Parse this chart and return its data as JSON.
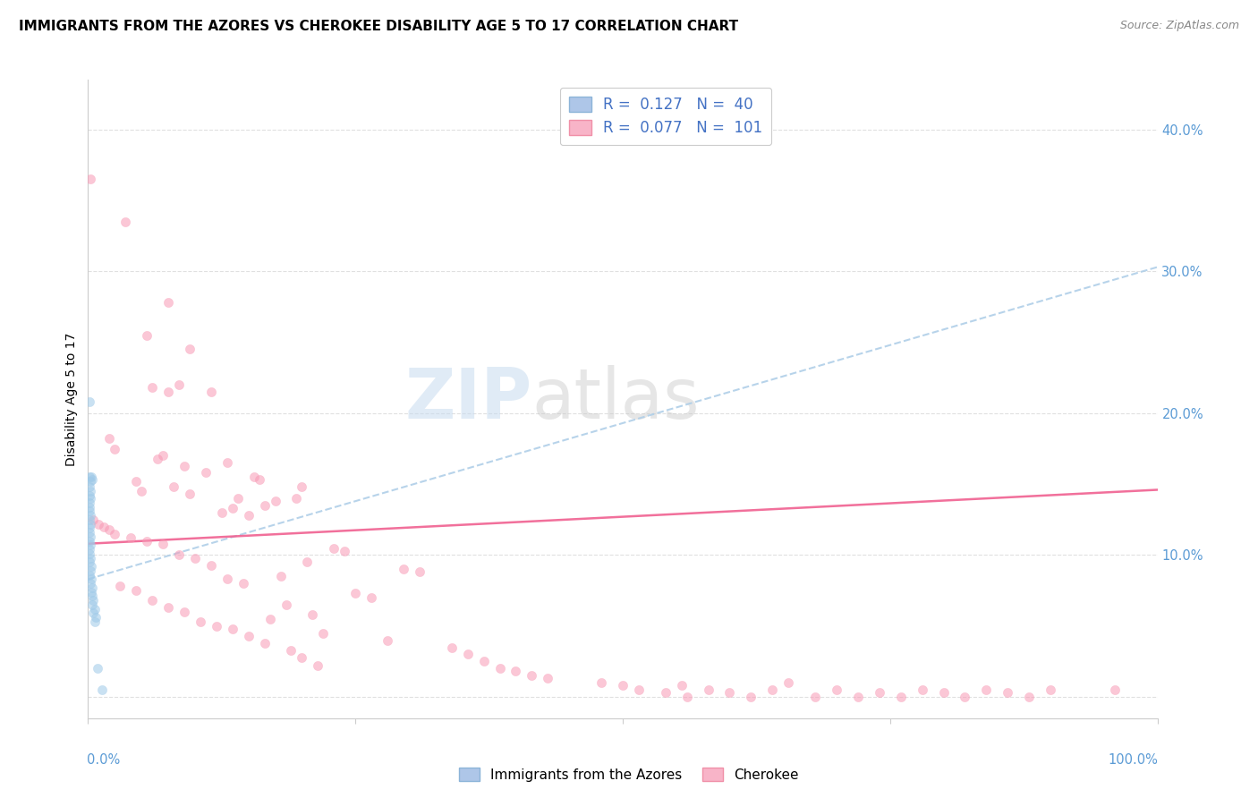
{
  "title": "IMMIGRANTS FROM THE AZORES VS CHEROKEE DISABILITY AGE 5 TO 17 CORRELATION CHART",
  "source": "Source: ZipAtlas.com",
  "ylabel": "Disability Age 5 to 17",
  "yticks": [
    0.0,
    0.1,
    0.2,
    0.3,
    0.4
  ],
  "ytick_labels": [
    "",
    "10.0%",
    "20.0%",
    "30.0%",
    "40.0%"
  ],
  "xlim": [
    0.0,
    1.0
  ],
  "ylim": [
    -0.015,
    0.435
  ],
  "watermark": "ZIPatlas",
  "background_color": "#ffffff",
  "grid_color": "#e0e0e0",
  "tick_color": "#5b9bd5",
  "scatter_size": 55,
  "scatter_alpha": 0.55,
  "blue_scatter_color": "#9ec9e8",
  "pink_scatter_color": "#f899b5",
  "blue_line_color": "#b0cfe8",
  "pink_line_color": "#f06090",
  "blue_line_intercept": 0.083,
  "blue_line_slope": 0.22,
  "pink_line_intercept": 0.108,
  "pink_line_slope": 0.038,
  "blue_scatter": [
    [
      0.001,
      0.208
    ],
    [
      0.003,
      0.155
    ],
    [
      0.004,
      0.153
    ],
    [
      0.001,
      0.155
    ],
    [
      0.002,
      0.152
    ],
    [
      0.001,
      0.148
    ],
    [
      0.002,
      0.145
    ],
    [
      0.001,
      0.142
    ],
    [
      0.002,
      0.14
    ],
    [
      0.001,
      0.137
    ],
    [
      0.001,
      0.134
    ],
    [
      0.001,
      0.131
    ],
    [
      0.002,
      0.128
    ],
    [
      0.001,
      0.125
    ],
    [
      0.002,
      0.122
    ],
    [
      0.001,
      0.119
    ],
    [
      0.001,
      0.116
    ],
    [
      0.002,
      0.113
    ],
    [
      0.001,
      0.11
    ],
    [
      0.002,
      0.107
    ],
    [
      0.001,
      0.104
    ],
    [
      0.001,
      0.101
    ],
    [
      0.002,
      0.098
    ],
    [
      0.001,
      0.095
    ],
    [
      0.003,
      0.092
    ],
    [
      0.002,
      0.089
    ],
    [
      0.001,
      0.086
    ],
    [
      0.003,
      0.083
    ],
    [
      0.002,
      0.08
    ],
    [
      0.004,
      0.077
    ],
    [
      0.003,
      0.074
    ],
    [
      0.004,
      0.071
    ],
    [
      0.005,
      0.068
    ],
    [
      0.004,
      0.065
    ],
    [
      0.006,
      0.062
    ],
    [
      0.005,
      0.059
    ],
    [
      0.007,
      0.056
    ],
    [
      0.006,
      0.053
    ],
    [
      0.009,
      0.02
    ],
    [
      0.013,
      0.005
    ]
  ],
  "pink_scatter": [
    [
      0.002,
      0.365
    ],
    [
      0.035,
      0.335
    ],
    [
      0.075,
      0.278
    ],
    [
      0.055,
      0.255
    ],
    [
      0.095,
      0.245
    ],
    [
      0.085,
      0.22
    ],
    [
      0.06,
      0.218
    ],
    [
      0.075,
      0.215
    ],
    [
      0.115,
      0.215
    ],
    [
      0.02,
      0.182
    ],
    [
      0.025,
      0.175
    ],
    [
      0.07,
      0.17
    ],
    [
      0.065,
      0.168
    ],
    [
      0.13,
      0.165
    ],
    [
      0.09,
      0.163
    ],
    [
      0.11,
      0.158
    ],
    [
      0.155,
      0.155
    ],
    [
      0.16,
      0.153
    ],
    [
      0.045,
      0.152
    ],
    [
      0.08,
      0.148
    ],
    [
      0.2,
      0.148
    ],
    [
      0.05,
      0.145
    ],
    [
      0.095,
      0.143
    ],
    [
      0.195,
      0.14
    ],
    [
      0.14,
      0.14
    ],
    [
      0.175,
      0.138
    ],
    [
      0.165,
      0.135
    ],
    [
      0.135,
      0.133
    ],
    [
      0.125,
      0.13
    ],
    [
      0.15,
      0.128
    ],
    [
      0.005,
      0.125
    ],
    [
      0.01,
      0.122
    ],
    [
      0.015,
      0.12
    ],
    [
      0.02,
      0.118
    ],
    [
      0.025,
      0.115
    ],
    [
      0.04,
      0.112
    ],
    [
      0.055,
      0.11
    ],
    [
      0.07,
      0.108
    ],
    [
      0.23,
      0.105
    ],
    [
      0.24,
      0.103
    ],
    [
      0.085,
      0.1
    ],
    [
      0.1,
      0.098
    ],
    [
      0.205,
      0.095
    ],
    [
      0.115,
      0.093
    ],
    [
      0.295,
      0.09
    ],
    [
      0.31,
      0.088
    ],
    [
      0.18,
      0.085
    ],
    [
      0.13,
      0.083
    ],
    [
      0.145,
      0.08
    ],
    [
      0.03,
      0.078
    ],
    [
      0.045,
      0.075
    ],
    [
      0.25,
      0.073
    ],
    [
      0.265,
      0.07
    ],
    [
      0.06,
      0.068
    ],
    [
      0.185,
      0.065
    ],
    [
      0.075,
      0.063
    ],
    [
      0.09,
      0.06
    ],
    [
      0.21,
      0.058
    ],
    [
      0.17,
      0.055
    ],
    [
      0.105,
      0.053
    ],
    [
      0.12,
      0.05
    ],
    [
      0.135,
      0.048
    ],
    [
      0.22,
      0.045
    ],
    [
      0.15,
      0.043
    ],
    [
      0.28,
      0.04
    ],
    [
      0.165,
      0.038
    ],
    [
      0.34,
      0.035
    ],
    [
      0.19,
      0.033
    ],
    [
      0.355,
      0.03
    ],
    [
      0.2,
      0.028
    ],
    [
      0.37,
      0.025
    ],
    [
      0.215,
      0.022
    ],
    [
      0.385,
      0.02
    ],
    [
      0.4,
      0.018
    ],
    [
      0.415,
      0.015
    ],
    [
      0.43,
      0.013
    ],
    [
      0.48,
      0.01
    ],
    [
      0.5,
      0.008
    ],
    [
      0.515,
      0.005
    ],
    [
      0.54,
      0.003
    ],
    [
      0.56,
      0.0
    ],
    [
      0.58,
      0.005
    ],
    [
      0.6,
      0.003
    ],
    [
      0.555,
      0.008
    ],
    [
      0.62,
      0.0
    ],
    [
      0.64,
      0.005
    ],
    [
      0.655,
      0.01
    ],
    [
      0.68,
      0.0
    ],
    [
      0.7,
      0.005
    ],
    [
      0.72,
      0.0
    ],
    [
      0.74,
      0.003
    ],
    [
      0.76,
      0.0
    ],
    [
      0.78,
      0.005
    ],
    [
      0.8,
      0.003
    ],
    [
      0.82,
      0.0
    ],
    [
      0.84,
      0.005
    ],
    [
      0.86,
      0.003
    ],
    [
      0.88,
      0.0
    ],
    [
      0.9,
      0.005
    ],
    [
      0.96,
      0.005
    ]
  ]
}
